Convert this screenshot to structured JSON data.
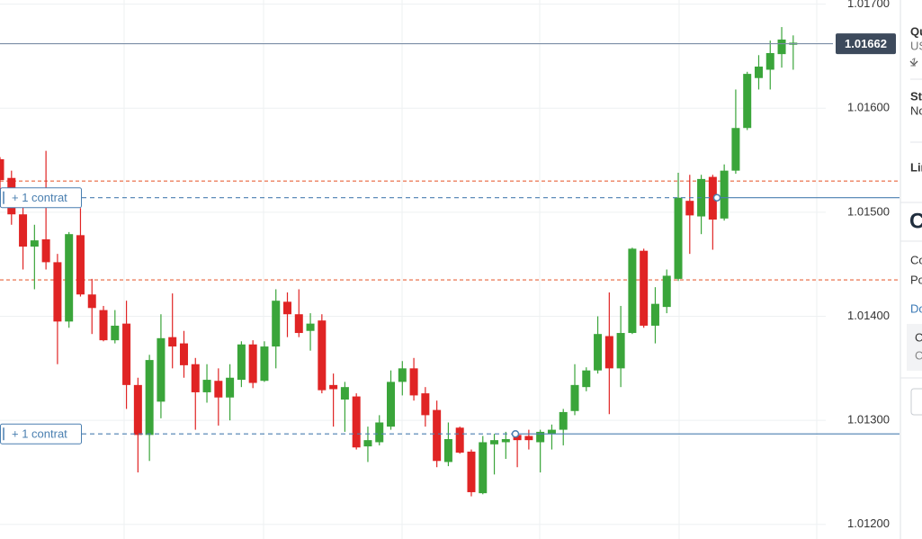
{
  "chart_data": {
    "type": "candlestick",
    "up_color": "#3aa53a",
    "down_color": "#e02424",
    "ylim": [
      1.01186,
      1.01704
    ],
    "yticks": [
      {
        "value": 1.017,
        "label": "1.01700"
      },
      {
        "value": 1.016,
        "label": "1.01600"
      },
      {
        "value": 1.015,
        "label": "1.01500"
      },
      {
        "value": 1.014,
        "label": "1.01400"
      },
      {
        "value": 1.013,
        "label": "1.01300"
      },
      {
        "value": 1.012,
        "label": "1.01200"
      }
    ],
    "grid": true,
    "open": [
      1.01551,
      1.01533,
      1.01498,
      1.01467,
      1.01474,
      1.01452,
      1.01395,
      1.01478,
      1.01421,
      1.01406,
      1.01377,
      1.01393,
      1.01334,
      1.01286,
      1.01318,
      1.0138,
      1.01374,
      1.01354,
      1.01327,
      1.01338,
      1.01322,
      1.01339,
      1.01373,
      1.01338,
      1.01371,
      1.01414,
      1.01402,
      1.01386,
      1.01396,
      1.01334,
      1.0132,
      1.01323,
      1.01275,
      1.01279,
      1.01294,
      1.01337,
      1.0135,
      1.01326,
      1.0131,
      1.0126,
      1.01293,
      1.0127,
      1.0123,
      1.01277,
      1.01279,
      1.01286,
      1.01285,
      1.01279,
      1.01287,
      1.01291,
      1.01309,
      1.01332,
      1.01348,
      1.01381,
      1.0135,
      1.01384,
      1.01463,
      1.01391,
      1.01409,
      1.01436,
      1.01511,
      1.01496,
      1.01534,
      1.01494,
      1.0154,
      1.01581,
      1.01629,
      1.01637,
      1.01652,
      1.01661
    ],
    "high": [
      1.01553,
      1.0154,
      1.01505,
      1.01488,
      1.01559,
      1.0146,
      1.01481,
      1.01504,
      1.01436,
      1.0141,
      1.01406,
      1.01415,
      1.01341,
      1.01363,
      1.01402,
      1.01422,
      1.01386,
      1.0136,
      1.01354,
      1.0135,
      1.01354,
      1.01376,
      1.01377,
      1.01376,
      1.01426,
      1.01423,
      1.01426,
      1.01403,
      1.01402,
      1.01345,
      1.01337,
      1.01326,
      1.01294,
      1.01305,
      1.01348,
      1.01357,
      1.0136,
      1.01332,
      1.01319,
      1.01298,
      1.01294,
      1.01272,
      1.01285,
      1.01287,
      1.01289,
      1.01289,
      1.01291,
      1.01291,
      1.01296,
      1.01311,
      1.01354,
      1.01351,
      1.014,
      1.01423,
      1.0141,
      1.01466,
      1.01465,
      1.01428,
      1.01445,
      1.01538,
      1.01536,
      1.01536,
      1.01536,
      1.01546,
      1.01618,
      1.01635,
      1.01651,
      1.01665,
      1.01678,
      1.0167
    ],
    "low": [
      1.01505,
      1.01488,
      1.01445,
      1.01426,
      1.01445,
      1.01354,
      1.01389,
      1.01419,
      1.01383,
      1.01376,
      1.01374,
      1.01311,
      1.0125,
      1.01261,
      1.01302,
      1.0135,
      1.01341,
      1.01291,
      1.01317,
      1.01295,
      1.013,
      1.01332,
      1.01331,
      1.01337,
      1.0135,
      1.0138,
      1.0138,
      1.01367,
      1.01326,
      1.01294,
      1.01289,
      1.01272,
      1.0126,
      1.01276,
      1.01291,
      1.01324,
      1.01319,
      1.01294,
      1.01255,
      1.01256,
      1.01268,
      1.01227,
      1.01229,
      1.01248,
      1.01263,
      1.01255,
      1.01272,
      1.0125,
      1.01272,
      1.01276,
      1.01305,
      1.01328,
      1.01345,
      1.01306,
      1.01332,
      1.01383,
      1.01389,
      1.01374,
      1.01403,
      1.01434,
      1.0146,
      1.01479,
      1.01464,
      1.01492,
      1.01537,
      1.01579,
      1.01618,
      1.01618,
      1.01639,
      1.01637
    ],
    "close": [
      1.01531,
      1.01498,
      1.01467,
      1.01473,
      1.01452,
      1.01395,
      1.01479,
      1.01421,
      1.01408,
      1.01377,
      1.01391,
      1.01334,
      1.01286,
      1.01358,
      1.01379,
      1.01371,
      1.01353,
      1.01327,
      1.01339,
      1.01322,
      1.01341,
      1.01373,
      1.01336,
      1.01371,
      1.01415,
      1.01402,
      1.01384,
      1.01393,
      1.01329,
      1.0133,
      1.01332,
      1.01274,
      1.01281,
      1.01298,
      1.01337,
      1.0135,
      1.01324,
      1.01305,
      1.01261,
      1.01282,
      1.01269,
      1.01231,
      1.01279,
      1.01281,
      1.01282,
      1.01281,
      1.01281,
      1.01289,
      1.01291,
      1.01308,
      1.01334,
      1.01348,
      1.01383,
      1.0135,
      1.01384,
      1.01465,
      1.01391,
      1.01412,
      1.01439,
      1.01514,
      1.01497,
      1.01532,
      1.01493,
      1.0154,
      1.01581,
      1.01633,
      1.0164,
      1.01653,
      1.01666,
      1.01663
    ],
    "price_line": {
      "value": 1.01662,
      "label": "1.01662",
      "color": "#3d4a5c"
    },
    "stop_levels": [
      1.0153,
      1.01435
    ],
    "stop_color": "#e8643c",
    "orders": [
      {
        "value": 1.01514,
        "label": "+ 1 contrat"
      },
      {
        "value": 1.01287,
        "label": "+ 1 contrat"
      }
    ],
    "order_color": "#4a7fb0"
  },
  "sidebar": {
    "items": [
      "Qu",
      "US",
      "1",
      "St",
      "No",
      "Lin",
      "C",
      "Co",
      "Po",
      "Do",
      "C",
      "C"
    ]
  }
}
